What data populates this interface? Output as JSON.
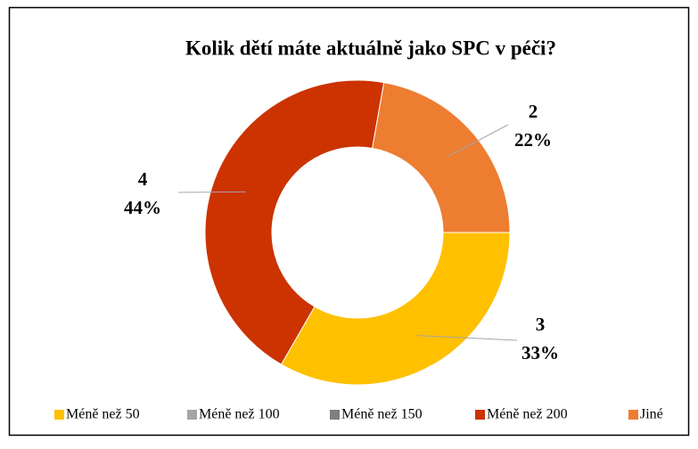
{
  "chart_data": {
    "type": "donut",
    "title": "Kolik dětí máte aktuálně jako SPC v péči?",
    "categories": [
      "Méně než 50",
      "Méně než 100",
      "Méně než 150",
      "Méně než 200",
      "Jiné"
    ],
    "values": [
      3,
      0,
      0,
      4,
      2
    ],
    "percentages": [
      33,
      0,
      0,
      44,
      22
    ],
    "percent_labels": [
      "33%",
      null,
      null,
      "44%",
      "22%"
    ],
    "colors": [
      "#ffc000",
      "#a5a5a5",
      "#7f7f7f",
      "#cc3300",
      "#ed7d31"
    ],
    "legend": "bottom"
  }
}
